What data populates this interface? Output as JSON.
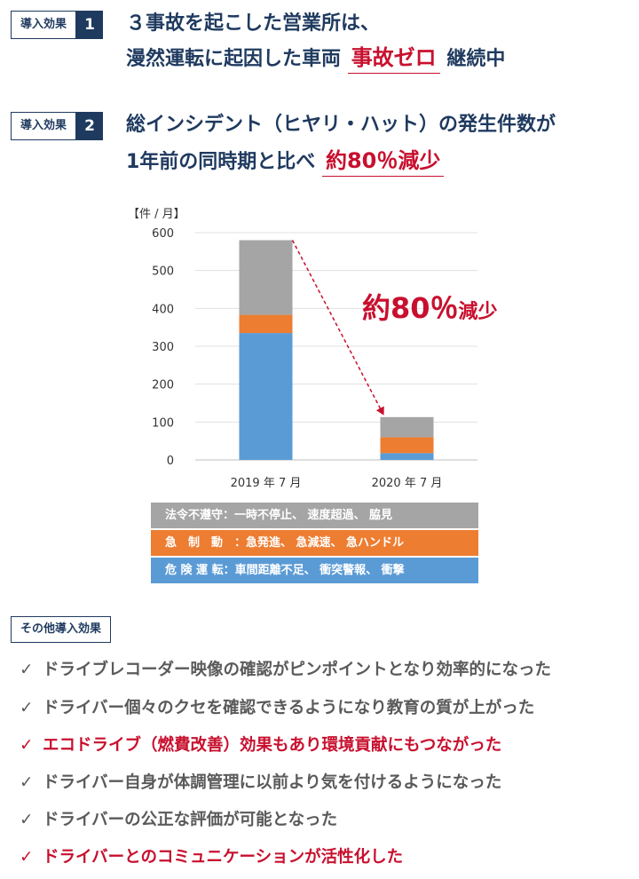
{
  "section1": {
    "tag_label": "導入効果",
    "tag_num": "1",
    "line1": "３事故を起こした営業所は、",
    "line2_pre": "漫然運転に起因した車両",
    "line2_highlight": "事故ゼロ",
    "line2_post": "継続中"
  },
  "section2": {
    "tag_label": "導入効果",
    "tag_num": "2",
    "line1": "総インシデント（ヒヤリ・ハット）の発生件数が",
    "line2_pre": "1年前の同時期と比べ",
    "line2_highlight": "約80％減少"
  },
  "chart_data": {
    "type": "bar",
    "stacked": true,
    "ylabel": "【件 / 月】",
    "ylim": [
      0,
      600
    ],
    "yticks": [
      "0",
      "100",
      "200",
      "300",
      "400",
      "500",
      "600"
    ],
    "categories": [
      "2019 年 7 月",
      "2020 年 7 月"
    ],
    "series": [
      {
        "name": "危 険 運 転：車間距離不足、 衝突警報、 衝撃",
        "color": "#5b9bd5",
        "values": [
          335,
          18
        ]
      },
      {
        "name": "急 制 動 ：急発進、 急減速、 急ハンドル",
        "color": "#ed7d31",
        "values": [
          48,
          42
        ]
      },
      {
        "name": "法令不遵守：一時不停止、 速度超過、 脇見",
        "color": "#a5a5a5",
        "values": [
          197,
          53
        ]
      }
    ],
    "annotation_main": "約80％",
    "annotation_suffix": "減少",
    "grid": true,
    "arrow_color": "#c8102e"
  },
  "legend": {
    "row1": "法令不遵守：一時不停止、 速度超過、 脇見",
    "row2": "急　制　動　：急発進、 急減速、 急ハンドル",
    "row3": "危 険 運 転：車間距離不足、 衝突警報、 衝撃"
  },
  "other": {
    "tag_label": "その他導入効果",
    "check": "✓",
    "items": [
      "ドライブレコーダー映像の確認がピンポイントとなり効率的になった",
      "ドライバー個々のクセを確認できるようになり教育の質が上がった",
      "エコドライブ（燃費改善）効果もあり環境貢献にもつながった",
      "ドライバー自身が体調管理に以前より気を付けるようになった",
      "ドライバーの公正な評価が可能となった",
      "ドライバーとのコミュニケーションが活性化した"
    ]
  },
  "colors": {
    "navy": "#1f3a5f",
    "red": "#c8102e",
    "gray_text": "#5a5a5a",
    "legend_gray": "#a5a5a5",
    "legend_orange": "#ed7d31",
    "legend_blue": "#5b9bd5"
  }
}
